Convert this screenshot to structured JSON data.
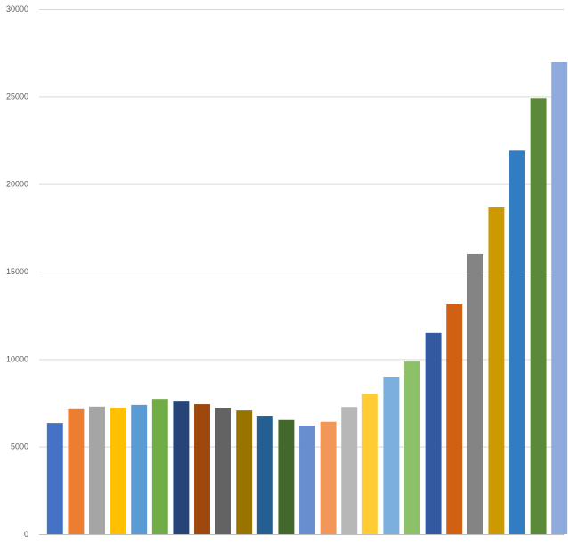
{
  "chart_data": {
    "type": "bar",
    "title": "",
    "xlabel": "",
    "ylabel": "",
    "ylim": [
      0,
      30000
    ],
    "yticks": [
      0,
      5000,
      10000,
      15000,
      20000,
      25000,
      30000
    ],
    "grid": true,
    "legend": "none",
    "categories": [
      "",
      "",
      "",
      "",
      "",
      "",
      "",
      "",
      "",
      "",
      "",
      "",
      "",
      "",
      "",
      "",
      "",
      "",
      "",
      "",
      "",
      "",
      "",
      "",
      ""
    ],
    "values": [
      6350,
      7180,
      7280,
      7220,
      7380,
      7720,
      7620,
      7420,
      7220,
      7060,
      6760,
      6520,
      6200,
      6420,
      7260,
      8020,
      9000,
      9860,
      11500,
      13120,
      16020,
      18660,
      21900,
      24900,
      26950
    ],
    "colors": [
      "#4472C4",
      "#ED7D31",
      "#A5A5A5",
      "#FFC000",
      "#5B9BD5",
      "#70AD47",
      "#264478",
      "#9E480E",
      "#636363",
      "#997300",
      "#255E91",
      "#43682B",
      "#698ED0",
      "#F1975A",
      "#B7B7B7",
      "#FFCD33",
      "#7CAFDD",
      "#8CC168",
      "#335AA1",
      "#D26012",
      "#848484",
      "#CC9A00",
      "#327DC2",
      "#5A8A39",
      "#8FAADC"
    ],
    "gridline_color": "#D9D9D9",
    "axis_color": "#BFBFBF"
  }
}
